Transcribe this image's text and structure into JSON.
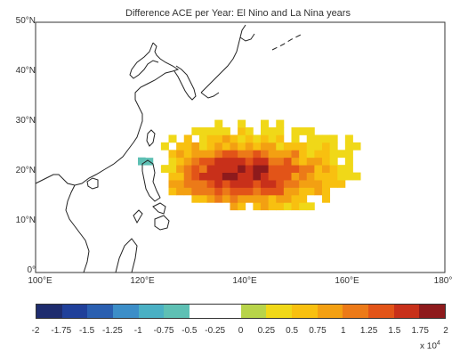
{
  "title": "Difference ACE per Year: El Nino and La Nina years",
  "map": {
    "lat_labels": [
      "50°N",
      "40°N",
      "30°N",
      "20°N",
      "10°N",
      "0°"
    ],
    "lat_values": [
      50,
      40,
      30,
      20,
      10,
      0
    ],
    "lon_labels": [
      "100°E",
      "120°E",
      "140°E",
      "160°E",
      "180°"
    ],
    "lon_values": [
      100,
      120,
      140,
      160,
      180
    ],
    "lon_range": [
      100,
      180
    ],
    "lat_range": [
      0,
      50
    ]
  },
  "colorbar": {
    "colors": [
      "#1e2c6e",
      "#20409a",
      "#2a5fb0",
      "#3c8ec8",
      "#4ab0c4",
      "#5ec0b4",
      "#ffffff",
      "#ffffff",
      "#b8d44a",
      "#f0d818",
      "#f8c010",
      "#f3a012",
      "#ec7a18",
      "#e25418",
      "#c8301a",
      "#8e1a1c"
    ],
    "tick_labels": [
      "-2",
      "-1.75",
      "-1.5",
      "-1.25",
      "-1",
      "-0.75",
      "-0.5",
      "-0.25",
      "0",
      "0.25",
      "0.5",
      "0.75",
      "1",
      "1.25",
      "1.5",
      "1.75",
      "2"
    ],
    "multiplier": "x 10",
    "multiplier_exp": "4"
  }
}
